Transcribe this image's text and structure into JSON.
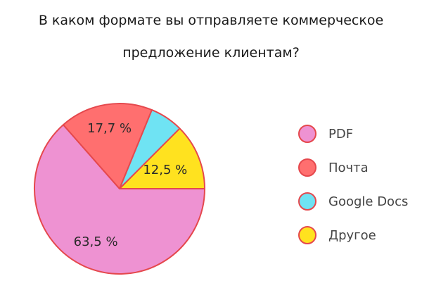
{
  "chart_data": {
    "type": "pie",
    "title_lines": [
      "В каком формате вы отправляете коммерческое",
      "предложение клиентам?"
    ],
    "categories": [
      "PDF",
      "Почта",
      "Google Docs",
      "Другое"
    ],
    "values": [
      63.5,
      17.7,
      6.3,
      12.5
    ],
    "data_labels": [
      "63,5 %",
      "17,7 %",
      "",
      "12,5 %"
    ],
    "colors": [
      "#ee92d2",
      "#ff6f6f",
      "#6fe3f3",
      "#ffe21f"
    ],
    "edge_color": "#e5484d",
    "legend_position": "right"
  }
}
